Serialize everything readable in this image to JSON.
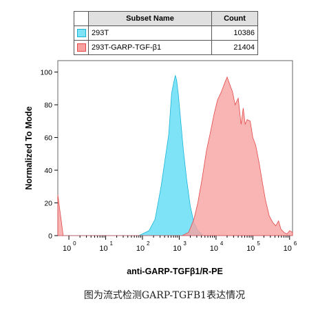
{
  "legend": {
    "header_name": "Subset Name",
    "header_count": "Count",
    "rows": [
      {
        "name": "293T",
        "count": "10386",
        "color": "#7fe3f7",
        "border": "#18b4d8"
      },
      {
        "name": "293T-GARP-TGF-β1",
        "count": "21404",
        "color": "#f7a1a1",
        "border": "#e34848"
      }
    ]
  },
  "caption": "图为流式检测GARP-TGFB1表达情况",
  "chart_data": {
    "type": "area",
    "title": "",
    "xlabel": "anti-GARP-TGFβ1/R-PE",
    "ylabel": "Normalized To Mode",
    "xscale": "log",
    "xlim": [
      0.5,
      1200000
    ],
    "ylim": [
      0,
      107
    ],
    "y_ticks": [
      0,
      20,
      40,
      60,
      80,
      100
    ],
    "x_ticks": [
      {
        "value": 1,
        "label": "10",
        "exp": "0"
      },
      {
        "value": 10,
        "label": "10",
        "exp": "1"
      },
      {
        "value": 100,
        "label": "10",
        "exp": "2"
      },
      {
        "value": 1000,
        "label": "10",
        "exp": "3"
      },
      {
        "value": 10000,
        "label": "10",
        "exp": "4"
      },
      {
        "value": 100000,
        "label": "10",
        "exp": "5"
      },
      {
        "value": 1000000,
        "label": "10",
        "exp": "6"
      }
    ],
    "series": [
      {
        "name": "293T",
        "color": "#7fe3f7",
        "stroke": "#18b4d8",
        "points": [
          [
            0.5,
            0
          ],
          [
            80,
            0
          ],
          [
            150,
            3
          ],
          [
            220,
            10
          ],
          [
            320,
            30
          ],
          [
            420,
            48
          ],
          [
            520,
            62
          ],
          [
            620,
            87
          ],
          [
            700,
            93
          ],
          [
            780,
            98
          ],
          [
            850,
            95
          ],
          [
            950,
            86
          ],
          [
            1100,
            70
          ],
          [
            1300,
            52
          ],
          [
            1600,
            34
          ],
          [
            2000,
            18
          ],
          [
            2500,
            8
          ],
          [
            3200,
            3
          ],
          [
            4500,
            0
          ],
          [
            1200000,
            0
          ]
        ]
      },
      {
        "name": "293T-GARP-TGF-β1",
        "color": "#f7a1a1",
        "stroke": "#e34848",
        "points": [
          [
            0.5,
            25
          ],
          [
            0.7,
            0
          ],
          [
            1200,
            0
          ],
          [
            1800,
            2
          ],
          [
            2500,
            10
          ],
          [
            3200,
            20
          ],
          [
            4200,
            35
          ],
          [
            5500,
            52
          ],
          [
            7000,
            63
          ],
          [
            9000,
            75
          ],
          [
            11000,
            83
          ],
          [
            14000,
            88
          ],
          [
            17000,
            93
          ],
          [
            20000,
            97
          ],
          [
            24000,
            92
          ],
          [
            28000,
            88
          ],
          [
            33000,
            80
          ],
          [
            40000,
            84
          ],
          [
            48000,
            68
          ],
          [
            55000,
            78
          ],
          [
            62000,
            68
          ],
          [
            70000,
            71
          ],
          [
            85000,
            70
          ],
          [
            100000,
            60
          ],
          [
            120000,
            55
          ],
          [
            150000,
            44
          ],
          [
            180000,
            33
          ],
          [
            220000,
            22
          ],
          [
            280000,
            12
          ],
          [
            350000,
            8
          ],
          [
            420000,
            6
          ],
          [
            500000,
            9
          ],
          [
            580000,
            4
          ],
          [
            700000,
            2
          ],
          [
            850000,
            1
          ],
          [
            1000000,
            3
          ],
          [
            1200000,
            2
          ]
        ]
      }
    ]
  }
}
